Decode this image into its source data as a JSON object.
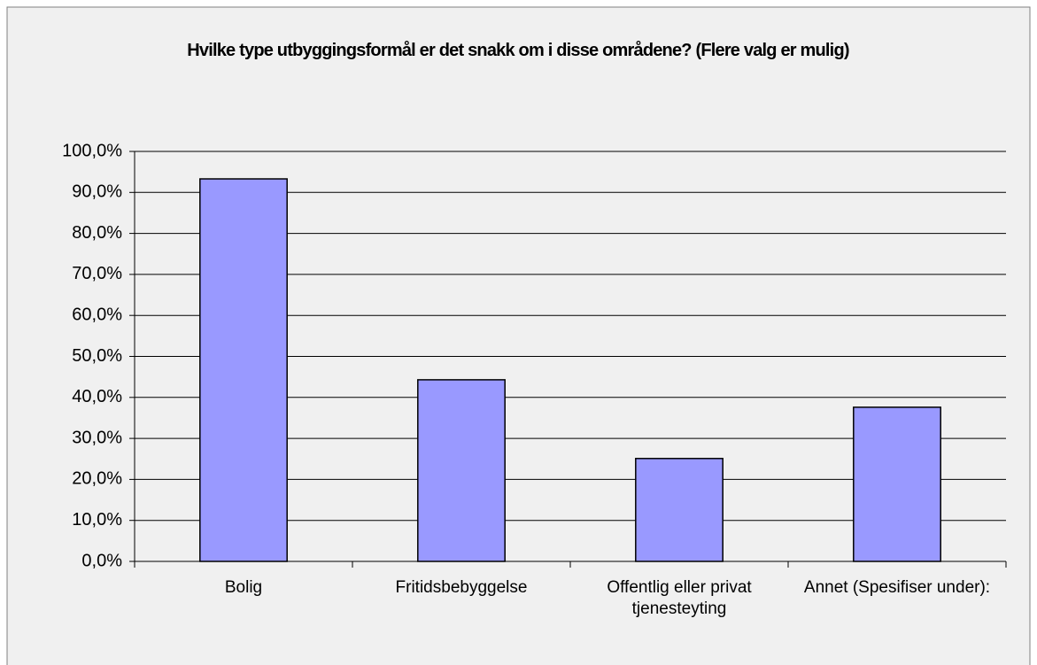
{
  "chart_data": {
    "type": "bar",
    "title": "Hvilke type utbyggingsformål er det snakk om i disse områdene? (Flere valg er mulig)",
    "categories": [
      "Bolig",
      "Fritidsbebyggelse",
      "Offentlig eller privat tjenesteyting",
      "Annet (Spesifiser under):"
    ],
    "values": [
      93.3,
      44.3,
      25.1,
      37.6
    ],
    "color": "#9999ff",
    "ylim": [
      0,
      100
    ],
    "yticks": [
      {
        "value": 0,
        "label": "0,0%"
      },
      {
        "value": 10,
        "label": "10,0%"
      },
      {
        "value": 20,
        "label": "20,0%"
      },
      {
        "value": 30,
        "label": "30,0%"
      },
      {
        "value": 40,
        "label": "40,0%"
      },
      {
        "value": 50,
        "label": "50,0%"
      },
      {
        "value": 60,
        "label": "60,0%"
      },
      {
        "value": 70,
        "label": "70,0%"
      },
      {
        "value": 80,
        "label": "80,0%"
      },
      {
        "value": 90,
        "label": "90,0%"
      },
      {
        "value": 100,
        "label": "100,0%"
      }
    ],
    "grid": true
  }
}
